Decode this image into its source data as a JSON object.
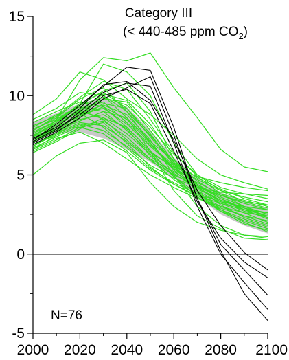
{
  "chart_data": {
    "type": "line",
    "title_line1": "Category III",
    "title_line2_prefix": "(< 440-485 ppm CO",
    "title_line2_subscript": "2",
    "title_line2_suffix": ")",
    "annotation": "N=76",
    "xlabel": "",
    "ylabel": "",
    "xlim": [
      2000,
      2100
    ],
    "ylim": [
      -5,
      15
    ],
    "x_ticks": [
      2000,
      2020,
      2040,
      2060,
      2080,
      2100
    ],
    "x_tick_labels": [
      "2000",
      "2020",
      "2040",
      "2060",
      "2080",
      "2100"
    ],
    "y_ticks": [
      -5,
      0,
      5,
      10,
      15
    ],
    "y_tick_labels": [
      "-5",
      "0",
      "5",
      "10",
      "15"
    ],
    "x_minor_ticks": [
      2010,
      2030,
      2050,
      2070,
      2090
    ],
    "y_minor_ticks": [
      -2.5,
      2.5,
      7.5,
      12.5
    ],
    "zero_line": true,
    "grid": false,
    "colors": {
      "scenario_green": "#33dd22",
      "scenario_black": "#000000",
      "range_band": "#c8c8c8"
    },
    "range_band": {
      "x": [
        2000,
        2010,
        2020,
        2030,
        2040,
        2050,
        2060,
        2070,
        2080,
        2090,
        2100
      ],
      "lower": [
        7.2,
        7.6,
        7.7,
        7.3,
        6.6,
        5.8,
        4.8,
        3.6,
        2.5,
        1.8,
        1.3
      ],
      "upper": [
        8.3,
        8.9,
        9.5,
        9.9,
        9.3,
        7.8,
        6.1,
        4.8,
        3.9,
        3.3,
        2.9
      ]
    },
    "x": [
      2000,
      2010,
      2020,
      2030,
      2040,
      2050,
      2060,
      2070,
      2080,
      2090,
      2100
    ],
    "series": [
      {
        "color": "black",
        "values": [
          7.2,
          8.2,
          9.4,
          10.6,
          11.8,
          11.6,
          8.0,
          3.5,
          0.2,
          -2.5,
          -4.2
        ]
      },
      {
        "color": "black",
        "values": [
          7.0,
          7.8,
          9.0,
          10.2,
          10.8,
          10.6,
          7.0,
          3.0,
          0.0,
          -1.8,
          -3.5
        ]
      },
      {
        "color": "black",
        "values": [
          6.9,
          7.7,
          8.6,
          9.8,
          10.5,
          11.2,
          7.5,
          3.5,
          0.6,
          -1.0,
          -2.6
        ]
      },
      {
        "color": "black",
        "values": [
          7.1,
          7.9,
          8.8,
          10.0,
          10.4,
          9.5,
          6.5,
          3.3,
          1.0,
          -0.5,
          -1.5
        ]
      },
      {
        "color": "black",
        "values": [
          7.3,
          8.0,
          9.2,
          10.7,
          10.9,
          9.7,
          7.2,
          4.0,
          1.8,
          0.1,
          -1.0
        ]
      },
      {
        "color": "green",
        "values": [
          7.0,
          8.5,
          11.0,
          12.4,
          12.2,
          12.7,
          10.5,
          8.6,
          6.6,
          5.5,
          5.2
        ]
      },
      {
        "color": "green",
        "values": [
          8.8,
          9.8,
          11.5,
          11.0,
          9.8,
          8.8,
          7.5,
          6.0,
          5.0,
          4.5,
          4.1
        ]
      },
      {
        "color": "green",
        "values": [
          7.6,
          8.4,
          9.5,
          12.0,
          11.5,
          10.0,
          7.0,
          5.0,
          4.2,
          3.8,
          3.5
        ]
      },
      {
        "color": "green",
        "values": [
          6.8,
          7.6,
          8.7,
          10.0,
          9.0,
          7.5,
          5.8,
          4.6,
          3.7,
          3.2,
          2.8
        ]
      },
      {
        "color": "green",
        "values": [
          7.4,
          8.0,
          8.8,
          9.2,
          8.2,
          6.8,
          5.5,
          4.4,
          3.6,
          3.0,
          2.5
        ]
      },
      {
        "color": "green",
        "values": [
          8.0,
          8.8,
          9.1,
          8.5,
          7.2,
          6.0,
          5.2,
          4.3,
          3.5,
          2.8,
          2.2
        ]
      },
      {
        "color": "green",
        "values": [
          6.5,
          7.2,
          8.0,
          8.3,
          7.0,
          5.5,
          4.4,
          3.6,
          2.8,
          2.2,
          1.7
        ]
      },
      {
        "color": "green",
        "values": [
          7.9,
          8.5,
          9.4,
          10.3,
          10.8,
          9.0,
          6.0,
          4.0,
          2.8,
          2.0,
          1.4
        ]
      },
      {
        "color": "green",
        "values": [
          7.2,
          7.8,
          8.4,
          9.0,
          8.6,
          6.5,
          4.0,
          2.4,
          1.6,
          1.0,
          0.9
        ]
      },
      {
        "color": "green",
        "values": [
          6.9,
          7.5,
          8.2,
          7.8,
          6.8,
          5.6,
          4.8,
          4.2,
          3.9,
          3.8,
          3.7
        ]
      },
      {
        "color": "green",
        "values": [
          8.3,
          9.0,
          9.6,
          9.3,
          8.0,
          6.5,
          5.4,
          4.5,
          3.8,
          3.4,
          3.0
        ]
      },
      {
        "color": "green",
        "values": [
          7.5,
          8.2,
          9.0,
          9.8,
          9.6,
          7.8,
          5.8,
          4.2,
          3.3,
          2.7,
          2.3
        ]
      },
      {
        "color": "green",
        "values": [
          6.6,
          7.3,
          7.7,
          7.0,
          6.0,
          5.0,
          4.2,
          3.5,
          3.0,
          2.6,
          2.4
        ]
      },
      {
        "color": "green",
        "values": [
          7.8,
          8.6,
          9.8,
          10.5,
          9.0,
          7.0,
          5.3,
          4.0,
          3.2,
          2.6,
          2.0
        ]
      },
      {
        "color": "green",
        "values": [
          7.0,
          7.9,
          8.5,
          8.8,
          7.9,
          6.2,
          4.9,
          3.8,
          3.0,
          2.4,
          1.9
        ]
      },
      {
        "color": "green",
        "values": [
          7.3,
          8.1,
          9.2,
          9.6,
          8.3,
          6.9,
          5.6,
          4.7,
          4.0,
          3.6,
          3.3
        ]
      },
      {
        "color": "green",
        "values": [
          6.8,
          7.7,
          8.9,
          9.4,
          8.8,
          7.2,
          5.0,
          3.0,
          1.8,
          1.2,
          1.0
        ]
      },
      {
        "color": "green",
        "values": [
          8.1,
          8.7,
          9.0,
          8.6,
          7.6,
          6.3,
          5.1,
          4.1,
          3.4,
          2.9,
          2.6
        ]
      },
      {
        "color": "green",
        "values": [
          7.4,
          8.3,
          9.4,
          9.9,
          9.4,
          8.0,
          6.3,
          5.0,
          4.0,
          3.3,
          2.9
        ]
      },
      {
        "color": "green",
        "values": [
          6.7,
          7.4,
          8.1,
          8.4,
          7.4,
          6.0,
          4.7,
          3.7,
          2.9,
          2.4,
          2.1
        ]
      },
      {
        "color": "green",
        "values": [
          7.6,
          8.4,
          9.3,
          9.0,
          7.8,
          6.4,
          5.5,
          4.9,
          4.5,
          4.2,
          4.0
        ]
      },
      {
        "color": "green",
        "values": [
          7.1,
          8.0,
          9.1,
          10.1,
          9.7,
          8.2,
          6.0,
          4.3,
          3.1,
          2.3,
          1.8
        ]
      },
      {
        "color": "green",
        "values": [
          7.7,
          8.4,
          8.9,
          8.0,
          6.7,
          5.4,
          4.5,
          3.8,
          3.3,
          3.0,
          2.8
        ]
      },
      {
        "color": "green",
        "values": [
          6.4,
          7.1,
          7.9,
          8.6,
          8.0,
          6.5,
          4.9,
          3.6,
          2.7,
          2.1,
          1.6
        ]
      },
      {
        "color": "green",
        "values": [
          8.5,
          9.2,
          10.2,
          10.0,
          8.6,
          7.1,
          5.9,
          4.8,
          4.1,
          3.5,
          3.1
        ]
      },
      {
        "color": "green",
        "values": [
          7.2,
          8.0,
          8.7,
          9.3,
          8.5,
          7.0,
          5.4,
          4.2,
          3.4,
          2.8,
          2.4
        ]
      },
      {
        "color": "green",
        "values": [
          6.9,
          7.6,
          8.3,
          8.1,
          7.1,
          5.9,
          5.0,
          4.3,
          3.7,
          3.3,
          3.1
        ]
      },
      {
        "color": "green",
        "values": [
          7.8,
          8.7,
          9.9,
          10.9,
          10.4,
          8.5,
          6.4,
          4.9,
          3.8,
          3.0,
          2.5
        ]
      },
      {
        "color": "green",
        "values": [
          5.0,
          6.2,
          7.0,
          7.2,
          6.4,
          4.5,
          3.0,
          2.0,
          1.5,
          1.2,
          1.1
        ]
      },
      {
        "color": "green",
        "values": [
          7.3,
          7.9,
          8.0,
          7.6,
          6.5,
          5.3,
          4.4,
          3.7,
          3.2,
          2.8,
          2.6
        ]
      },
      {
        "color": "green",
        "values": [
          6.6,
          7.5,
          8.6,
          9.5,
          9.2,
          7.6,
          5.6,
          3.9,
          2.7,
          1.9,
          1.5
        ]
      },
      {
        "color": "green",
        "values": [
          7.5,
          8.3,
          9.5,
          10.2,
          9.2,
          7.4,
          5.7,
          4.4,
          3.5,
          2.9,
          2.4
        ]
      }
    ]
  }
}
